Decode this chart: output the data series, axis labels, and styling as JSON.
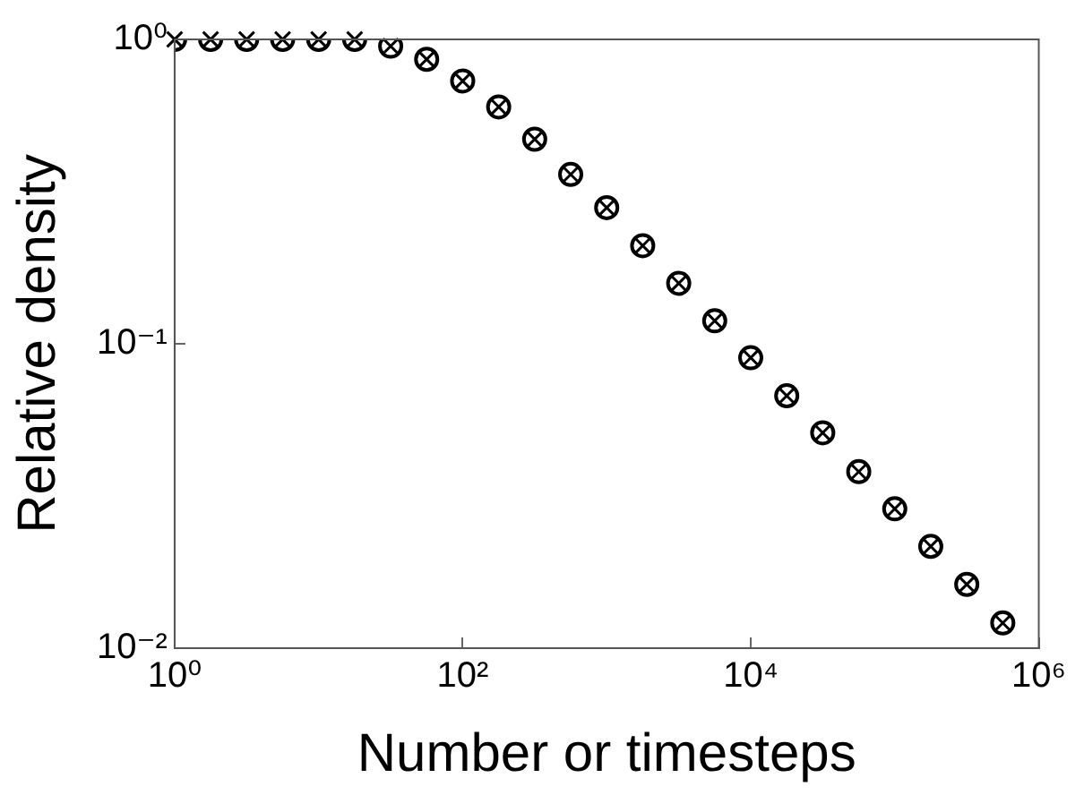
{
  "chart_data": {
    "type": "scatter",
    "xlabel": "Number or timesteps",
    "ylabel": "Relative density",
    "log": "xy",
    "grid": false,
    "legend": false,
    "marker": "circle",
    "x": [
      1,
      1.778,
      3.162,
      5.623,
      10,
      17.78,
      31.62,
      56.23,
      100,
      177.8,
      316.2,
      562.3,
      1000,
      1778,
      3162,
      5623,
      10000,
      17783,
      31623,
      56234,
      100000,
      177828,
      316228,
      562341
    ],
    "series": [
      {
        "color": "#000000",
        "values": [
          1,
          1,
          1,
          1,
          1,
          1,
          0.95,
          0.86,
          0.73,
          0.6,
          0.47,
          0.36,
          0.28,
          0.21,
          0.158,
          0.119,
          0.09,
          0.0675,
          0.051,
          0.038,
          0.0287,
          0.0216,
          0.0162,
          0.0121
        ]
      }
    ],
    "xlim": [
      1,
      1000000
    ],
    "ylim": [
      0.01,
      1
    ],
    "xticks": [
      {
        "value": 1,
        "label": "10⁰"
      },
      {
        "value": 100,
        "label": "10²"
      },
      {
        "value": 10000,
        "label": "10⁴"
      },
      {
        "value": 1000000,
        "label": "10⁶"
      }
    ],
    "yticks": [
      {
        "value": 0.01,
        "label": "10⁻²"
      },
      {
        "value": 0.1,
        "label": "10⁻¹"
      },
      {
        "value": 1,
        "label": "10⁰"
      }
    ]
  }
}
